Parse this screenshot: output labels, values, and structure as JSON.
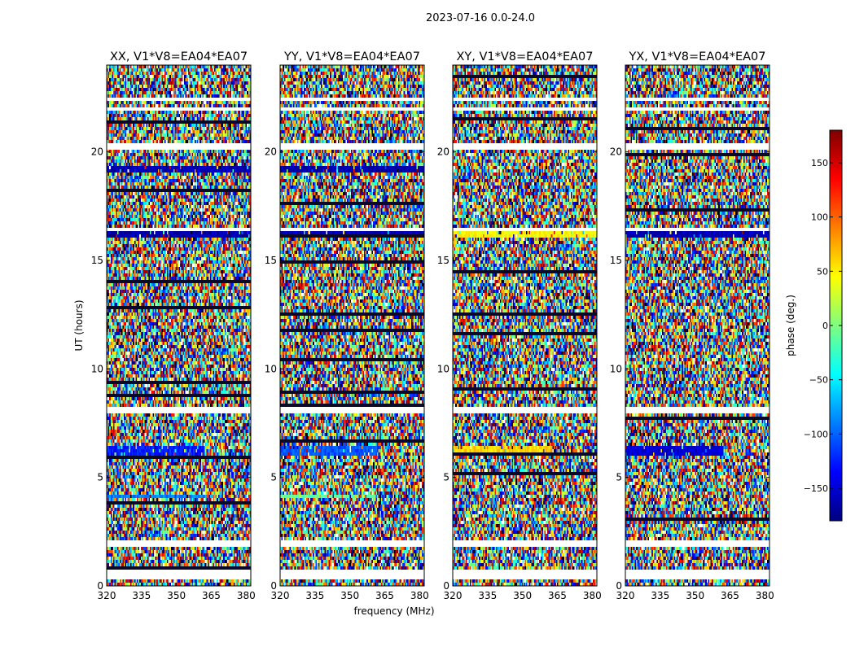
{
  "figure": {
    "suptitle": "2023-07-16 0.0-24.0",
    "xlabel": "frequency (MHz)",
    "ylabel": "UT (hours)"
  },
  "colorbar": {
    "label": "phase (deg.)",
    "range": [
      -180,
      180
    ],
    "ticks": [
      -150,
      -100,
      -50,
      0,
      50,
      100,
      150
    ],
    "tick_labels": [
      "−150",
      "−100",
      "−50",
      "0",
      "50",
      "100",
      "150"
    ],
    "colormap": [
      "#00007f",
      "#0000ff",
      "#007fff",
      "#00ffff",
      "#7fff7f",
      "#ffff00",
      "#ff7f00",
      "#ff0000",
      "#7f0000"
    ]
  },
  "chart_data": [
    {
      "type": "heatmap",
      "title": "XX, V1*V8=EA04*EA07",
      "xlabel": "frequency (MHz)",
      "ylabel": "UT (hours)",
      "xlim": [
        320,
        382
      ],
      "ylim": [
        0,
        24
      ],
      "xticks": [
        320,
        335,
        350,
        365,
        380
      ],
      "yticks": [
        0,
        5,
        10,
        15,
        20
      ],
      "value": "phase (deg.)",
      "value_range": [
        -180,
        180
      ],
      "flagged_ut_bands": [
        [
          0.45,
          0.75
        ],
        [
          1.9,
          2.15
        ],
        [
          8.1,
          8.3
        ],
        [
          16.45,
          16.6
        ],
        [
          20.25,
          20.4
        ],
        [
          21.95,
          22.1
        ],
        [
          22.5,
          22.6
        ]
      ],
      "coherent_features": [
        {
          "ut": [
            6.1,
            6.6
          ],
          "freq": [
            320,
            362
          ],
          "phase_deg": -125
        },
        {
          "ut": [
            4.05,
            4.35
          ],
          "freq": [
            320,
            362
          ],
          "phase_deg": -90
        },
        {
          "ut": [
            19.2,
            19.4
          ],
          "freq": [
            320,
            382
          ],
          "phase_deg": -160
        },
        {
          "ut": [
            16.15,
            16.35
          ],
          "freq": [
            320,
            382
          ],
          "phase_deg": -165
        }
      ]
    },
    {
      "type": "heatmap",
      "title": "YY, V1*V8=EA04*EA07",
      "xlabel": "frequency (MHz)",
      "ylabel": "UT (hours)",
      "xlim": [
        320,
        382
      ],
      "ylim": [
        0,
        24
      ],
      "xticks": [
        320,
        335,
        350,
        365,
        380
      ],
      "yticks": [
        0,
        5,
        10,
        15,
        20
      ],
      "value": "phase (deg.)",
      "value_range": [
        -180,
        180
      ],
      "flagged_ut_bands": [
        [
          0.45,
          0.75
        ],
        [
          1.9,
          2.15
        ],
        [
          8.1,
          8.3
        ],
        [
          16.45,
          16.6
        ],
        [
          20.25,
          20.4
        ],
        [
          21.95,
          22.1
        ],
        [
          22.5,
          22.6
        ]
      ],
      "coherent_features": [
        {
          "ut": [
            6.1,
            6.6
          ],
          "freq": [
            320,
            362
          ],
          "phase_deg": -105
        },
        {
          "ut": [
            4.05,
            4.35
          ],
          "freq": [
            320,
            362
          ],
          "phase_deg": -10
        },
        {
          "ut": [
            19.2,
            19.4
          ],
          "freq": [
            320,
            382
          ],
          "phase_deg": -165
        },
        {
          "ut": [
            16.15,
            16.35
          ],
          "freq": [
            320,
            382
          ],
          "phase_deg": -160
        }
      ]
    },
    {
      "type": "heatmap",
      "title": "XY, V1*V8=EA04*EA07",
      "xlabel": "frequency (MHz)",
      "ylabel": "UT (hours)",
      "xlim": [
        320,
        382
      ],
      "ylim": [
        0,
        24
      ],
      "xticks": [
        320,
        335,
        350,
        365,
        380
      ],
      "yticks": [
        0,
        5,
        10,
        15,
        20
      ],
      "value": "phase (deg.)",
      "value_range": [
        -180,
        180
      ],
      "flagged_ut_bands": [
        [
          0.45,
          0.75
        ],
        [
          1.9,
          2.15
        ],
        [
          8.1,
          8.3
        ],
        [
          16.45,
          16.6
        ],
        [
          20.25,
          20.4
        ],
        [
          21.95,
          22.1
        ],
        [
          22.5,
          22.6
        ]
      ],
      "coherent_features": [
        {
          "ut": [
            6.1,
            6.6
          ],
          "freq": [
            320,
            362
          ],
          "phase_deg": 60
        },
        {
          "ut": [
            16.15,
            16.35
          ],
          "freq": [
            320,
            382
          ],
          "phase_deg": 45
        }
      ]
    },
    {
      "type": "heatmap",
      "title": "YX, V1*V8=EA04*EA07",
      "xlabel": "frequency (MHz)",
      "ylabel": "UT (hours)",
      "xlim": [
        320,
        382
      ],
      "ylim": [
        0,
        24
      ],
      "xticks": [
        320,
        335,
        350,
        365,
        380
      ],
      "yticks": [
        0,
        5,
        10,
        15,
        20
      ],
      "value": "phase (deg.)",
      "value_range": [
        -180,
        180
      ],
      "flagged_ut_bands": [
        [
          0.45,
          0.75
        ],
        [
          1.9,
          2.15
        ],
        [
          8.1,
          8.3
        ],
        [
          16.45,
          16.6
        ],
        [
          20.25,
          20.4
        ],
        [
          21.95,
          22.1
        ],
        [
          22.5,
          22.6
        ]
      ],
      "coherent_features": [
        {
          "ut": [
            6.1,
            6.6
          ],
          "freq": [
            320,
            362
          ],
          "phase_deg": -150
        },
        {
          "ut": [
            16.15,
            16.35
          ],
          "freq": [
            320,
            382
          ],
          "phase_deg": -160
        }
      ]
    }
  ]
}
